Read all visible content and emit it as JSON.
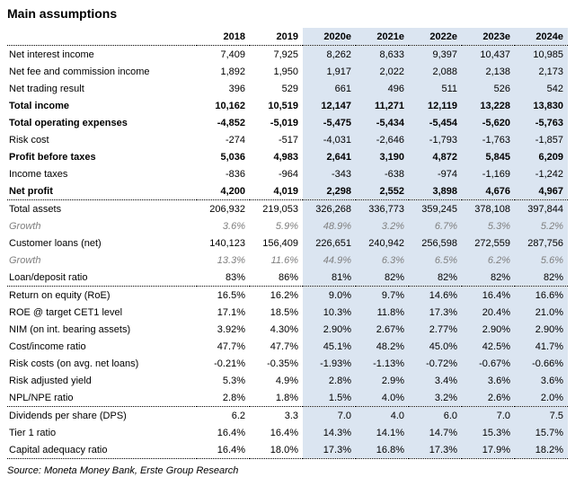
{
  "colors": {
    "forecast_highlight": "#dbe5f1",
    "muted_text": "#7f7f7f",
    "text": "#000000"
  },
  "chart_data": {
    "type": "table",
    "title": "Main assumptions",
    "source": "Source: Moneta Money Bank, Erste Group Research",
    "columns": [
      "2018",
      "2019",
      "2020e",
      "2021e",
      "2022e",
      "2023e",
      "2024e"
    ],
    "highlight_start_index": 2,
    "highlight_columns": [
      "2020e",
      "2021e",
      "2022e",
      "2023e",
      "2024e"
    ],
    "rows": [
      {
        "label": "Net interest income",
        "values": [
          "7,409",
          "7,925",
          "8,262",
          "8,633",
          "9,397",
          "10,437",
          "10,985"
        ],
        "style": "normal"
      },
      {
        "label": "Net fee and commission income",
        "values": [
          "1,892",
          "1,950",
          "1,917",
          "2,022",
          "2,088",
          "2,138",
          "2,173"
        ],
        "style": "normal"
      },
      {
        "label": "Net trading result",
        "values": [
          "396",
          "529",
          "661",
          "496",
          "511",
          "526",
          "542"
        ],
        "style": "normal"
      },
      {
        "label": "Total income",
        "values": [
          "10,162",
          "10,519",
          "12,147",
          "11,271",
          "12,119",
          "13,228",
          "13,830"
        ],
        "style": "bold"
      },
      {
        "label": "Total operating expenses",
        "values": [
          "-4,852",
          "-5,019",
          "-5,475",
          "-5,434",
          "-5,454",
          "-5,620",
          "-5,763"
        ],
        "style": "bold"
      },
      {
        "label": "Risk cost",
        "values": [
          "-274",
          "-517",
          "-4,031",
          "-2,646",
          "-1,793",
          "-1,763",
          "-1,857"
        ],
        "style": "normal"
      },
      {
        "label": "Profit before taxes",
        "values": [
          "5,036",
          "4,983",
          "2,641",
          "3,190",
          "4,872",
          "5,845",
          "6,209"
        ],
        "style": "bold"
      },
      {
        "label": "Income taxes",
        "values": [
          "-836",
          "-964",
          "-343",
          "-638",
          "-974",
          "-1,169",
          "-1,242"
        ],
        "style": "normal"
      },
      {
        "label": "Net profit",
        "values": [
          "4,200",
          "4,019",
          "2,298",
          "2,552",
          "3,898",
          "4,676",
          "4,967"
        ],
        "style": "bold",
        "separator_after": true
      },
      {
        "label": "Total assets",
        "values": [
          "206,932",
          "219,053",
          "326,268",
          "336,773",
          "359,245",
          "378,108",
          "397,844"
        ],
        "style": "normal"
      },
      {
        "label": "Growth",
        "values": [
          "3.6%",
          "5.9%",
          "48.9%",
          "3.2%",
          "6.7%",
          "5.3%",
          "5.2%"
        ],
        "style": "growth"
      },
      {
        "label": "Customer loans (net)",
        "values": [
          "140,123",
          "156,409",
          "226,651",
          "240,942",
          "256,598",
          "272,559",
          "287,756"
        ],
        "style": "normal"
      },
      {
        "label": "Growth",
        "values": [
          "13.3%",
          "11.6%",
          "44.9%",
          "6.3%",
          "6.5%",
          "6.2%",
          "5.6%"
        ],
        "style": "growth"
      },
      {
        "label": "Loan/deposit ratio",
        "values": [
          "83%",
          "86%",
          "81%",
          "82%",
          "82%",
          "82%",
          "82%"
        ],
        "style": "normal",
        "separator_after": true
      },
      {
        "label": "Return on equity (RoE)",
        "values": [
          "16.5%",
          "16.2%",
          "9.0%",
          "9.7%",
          "14.6%",
          "16.4%",
          "16.6%"
        ],
        "style": "normal"
      },
      {
        "label": "ROE @ target CET1 level",
        "values": [
          "17.1%",
          "18.5%",
          "10.3%",
          "11.8%",
          "17.3%",
          "20.4%",
          "21.0%"
        ],
        "style": "normal"
      },
      {
        "label": "NIM (on int. bearing assets)",
        "values": [
          "3.92%",
          "4.30%",
          "2.90%",
          "2.67%",
          "2.77%",
          "2.90%",
          "2.90%"
        ],
        "style": "normal"
      },
      {
        "label": "Cost/income ratio",
        "values": [
          "47.7%",
          "47.7%",
          "45.1%",
          "48.2%",
          "45.0%",
          "42.5%",
          "41.7%"
        ],
        "style": "normal"
      },
      {
        "label": "Risk costs (on avg. net loans)",
        "values": [
          "-0.21%",
          "-0.35%",
          "-1.93%",
          "-1.13%",
          "-0.72%",
          "-0.67%",
          "-0.66%"
        ],
        "style": "normal"
      },
      {
        "label": "Risk adjusted yield",
        "values": [
          "5.3%",
          "4.9%",
          "2.8%",
          "2.9%",
          "3.4%",
          "3.6%",
          "3.6%"
        ],
        "style": "normal"
      },
      {
        "label": "NPL/NPE ratio",
        "values": [
          "2.8%",
          "1.8%",
          "1.5%",
          "4.0%",
          "3.2%",
          "2.6%",
          "2.0%"
        ],
        "style": "normal",
        "separator_after": true
      },
      {
        "label": "Dividends per share (DPS)",
        "values": [
          "6.2",
          "3.3",
          "7.0",
          "4.0",
          "6.0",
          "7.0",
          "7.5"
        ],
        "style": "normal"
      },
      {
        "label": "Tier 1 ratio",
        "values": [
          "16.4%",
          "16.4%",
          "14.3%",
          "14.1%",
          "14.7%",
          "15.3%",
          "15.7%"
        ],
        "style": "normal"
      },
      {
        "label": "Capital adequacy ratio",
        "values": [
          "16.4%",
          "18.0%",
          "17.3%",
          "16.8%",
          "17.3%",
          "17.9%",
          "18.2%"
        ],
        "style": "normal",
        "separator_after": true
      }
    ]
  }
}
